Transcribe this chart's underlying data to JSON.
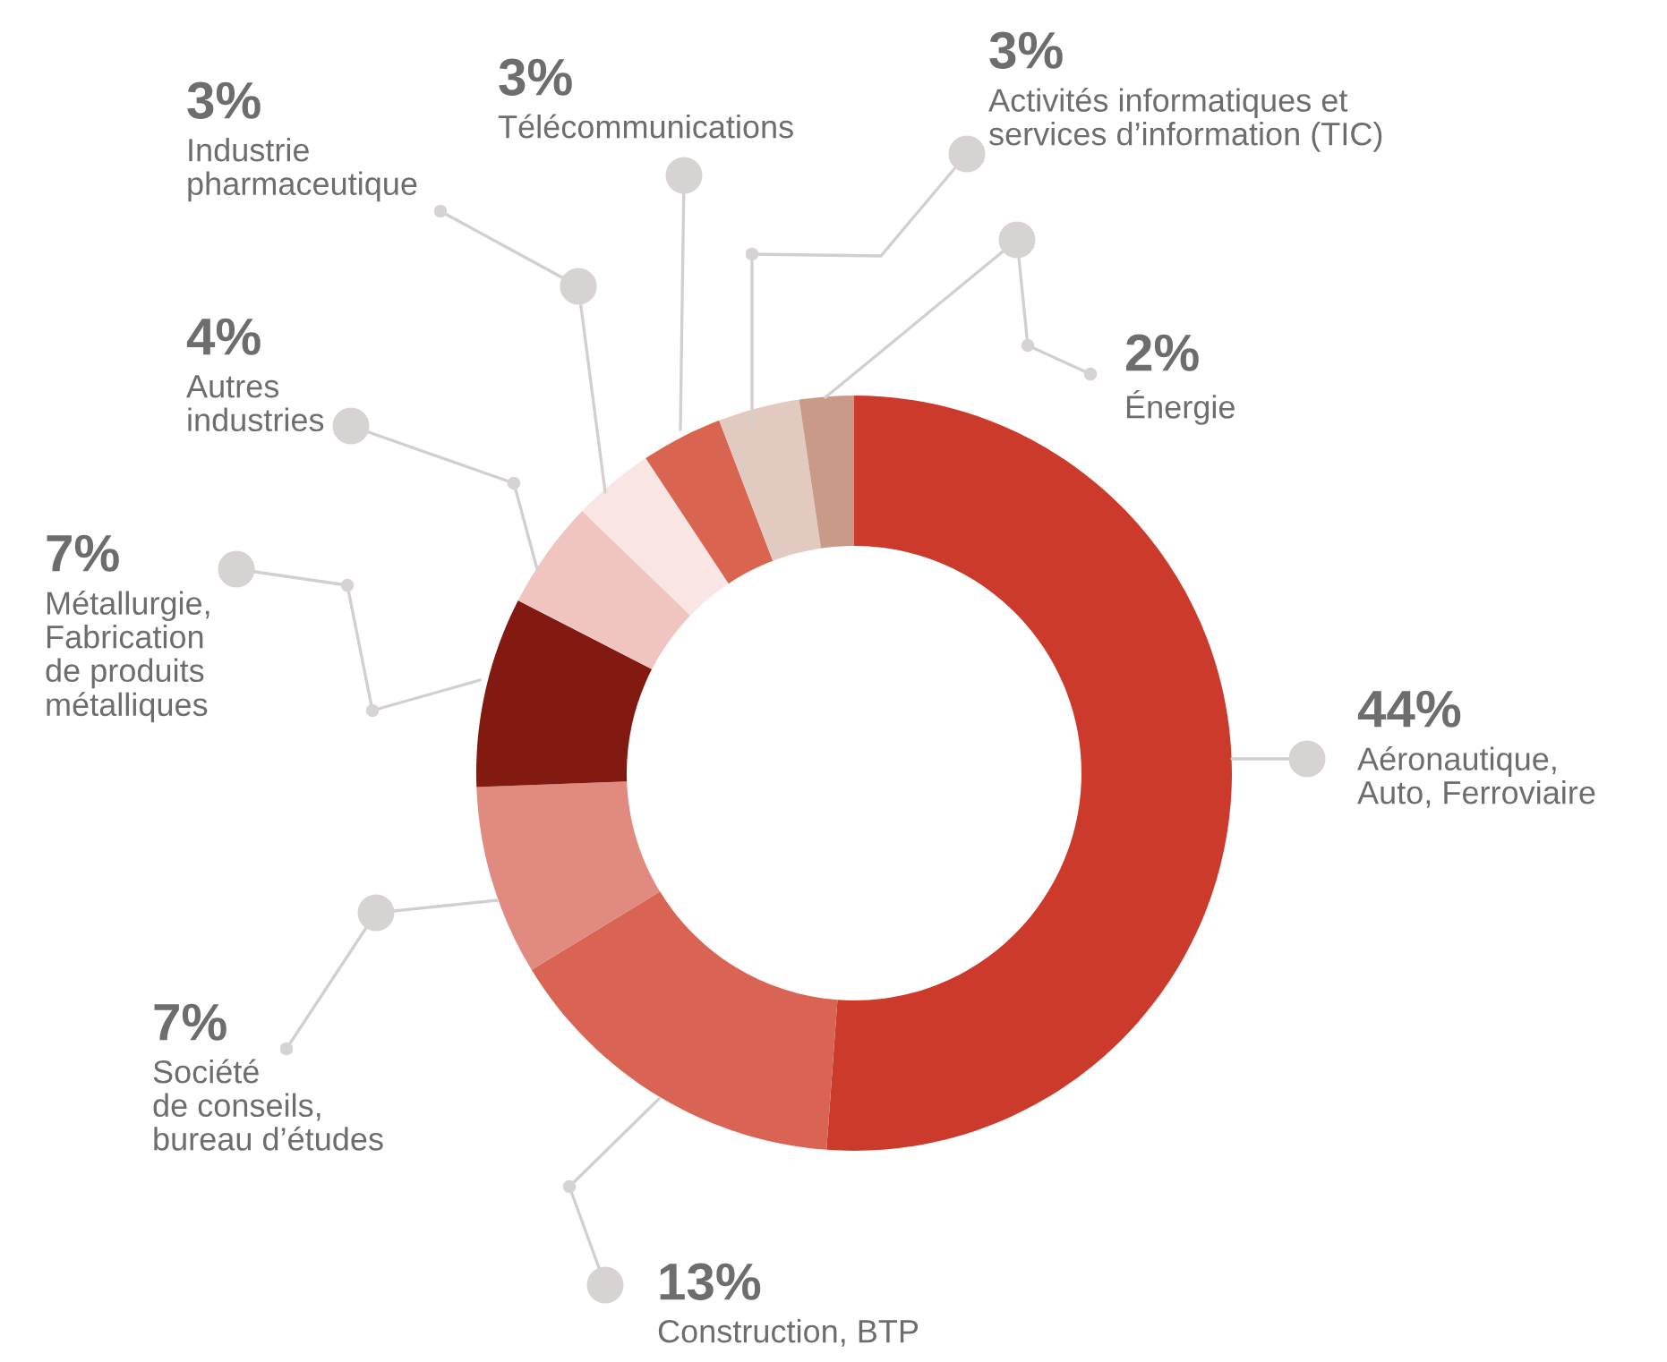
{
  "chart_data": {
    "type": "donut",
    "categories": [
      "Aéronautique,\nAuto, Ferroviaire",
      "Construction, BTP",
      "Société\nde conseils,\nbureau d’études",
      "Métallurgie,\nFabrication\nde produits\nmétalliques",
      "Autres\nindustries",
      "Industrie\npharmaceutique",
      "Télécommunications",
      "Activités informatiques et\nservices d’information (TIC)",
      "Énergie"
    ],
    "values": [
      44,
      13,
      7,
      7,
      4,
      3,
      3,
      3,
      2
    ],
    "value_labels": [
      "44%",
      "13%",
      "7%",
      "7%",
      "4%",
      "3%",
      "3%",
      "3%",
      "2%"
    ],
    "colors": [
      "#cc3a2b",
      "#d96454",
      "#e08a80",
      "#821a12",
      "#f0c4bf",
      "#f9e5e4",
      "#d9644f",
      "#e2cac0",
      "#c99a88"
    ]
  }
}
